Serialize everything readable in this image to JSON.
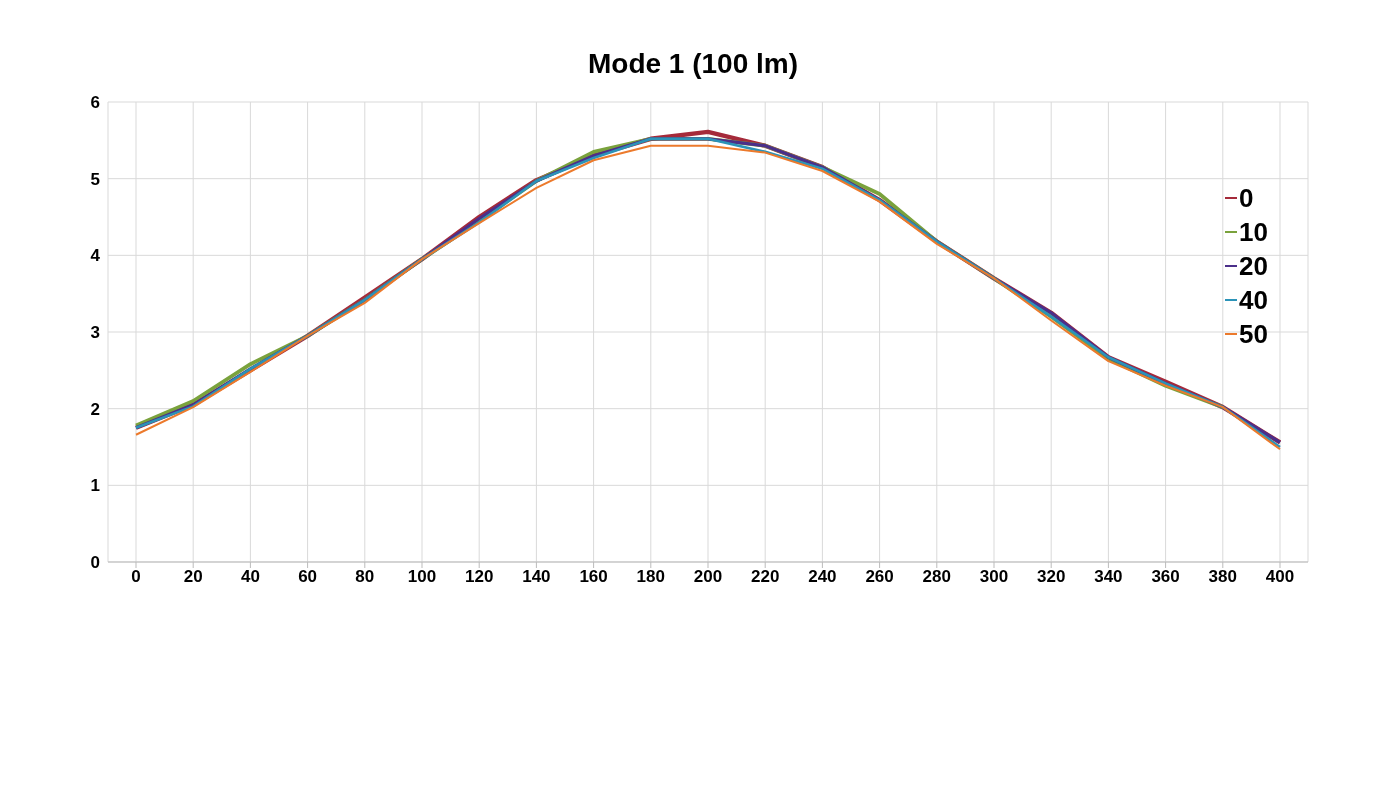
{
  "chart_data": {
    "type": "line",
    "title": "Mode 1 (100 lm)",
    "categories": [
      "0",
      "20",
      "40",
      "60",
      "80",
      "100",
      "120",
      "140",
      "160",
      "180",
      "200",
      "220",
      "240",
      "260",
      "280",
      "300",
      "320",
      "340",
      "360",
      "380",
      "400"
    ],
    "series": [
      {
        "name": "0",
        "color": "#a52a3a",
        "values": [
          1.75,
          2.05,
          2.5,
          2.95,
          3.45,
          3.95,
          4.5,
          4.98,
          5.3,
          5.52,
          5.61,
          5.43,
          5.15,
          4.72,
          4.18,
          3.7,
          3.25,
          2.67,
          2.35,
          2.02,
          1.56
        ]
      },
      {
        "name": "10",
        "color": "#7aa23c",
        "values": [
          1.78,
          2.1,
          2.58,
          2.95,
          3.42,
          3.95,
          4.45,
          4.97,
          5.35,
          5.52,
          5.52,
          5.43,
          5.15,
          4.8,
          4.18,
          3.7,
          3.2,
          2.65,
          2.3,
          2.02,
          null
        ]
      },
      {
        "name": "20",
        "color": "#4b2f8a",
        "values": [
          1.75,
          2.05,
          2.52,
          2.95,
          3.42,
          3.95,
          4.48,
          4.97,
          5.3,
          5.52,
          5.52,
          5.43,
          5.15,
          4.72,
          4.18,
          3.7,
          3.25,
          2.67,
          2.33,
          2.02,
          1.56
        ]
      },
      {
        "name": "40",
        "color": "#2b93b8",
        "values": [
          1.75,
          2.03,
          2.52,
          2.95,
          3.42,
          3.95,
          4.43,
          4.97,
          5.27,
          5.52,
          5.52,
          5.35,
          5.13,
          4.72,
          4.18,
          3.7,
          3.2,
          2.67,
          2.33,
          2.02,
          1.5
        ]
      },
      {
        "name": "50",
        "color": "#ec7a2c",
        "values": [
          1.66,
          2.02,
          2.48,
          2.95,
          3.38,
          3.95,
          4.42,
          4.88,
          5.24,
          5.43,
          5.43,
          5.34,
          5.1,
          4.7,
          4.15,
          3.7,
          3.15,
          2.62,
          2.3,
          2.02,
          1.47
        ]
      }
    ],
    "ylim": [
      0,
      6
    ],
    "yticks": [
      0,
      1,
      2,
      3,
      4,
      5,
      6
    ],
    "grid": true,
    "legend": "right",
    "marker": "none",
    "line_style": "solid"
  }
}
